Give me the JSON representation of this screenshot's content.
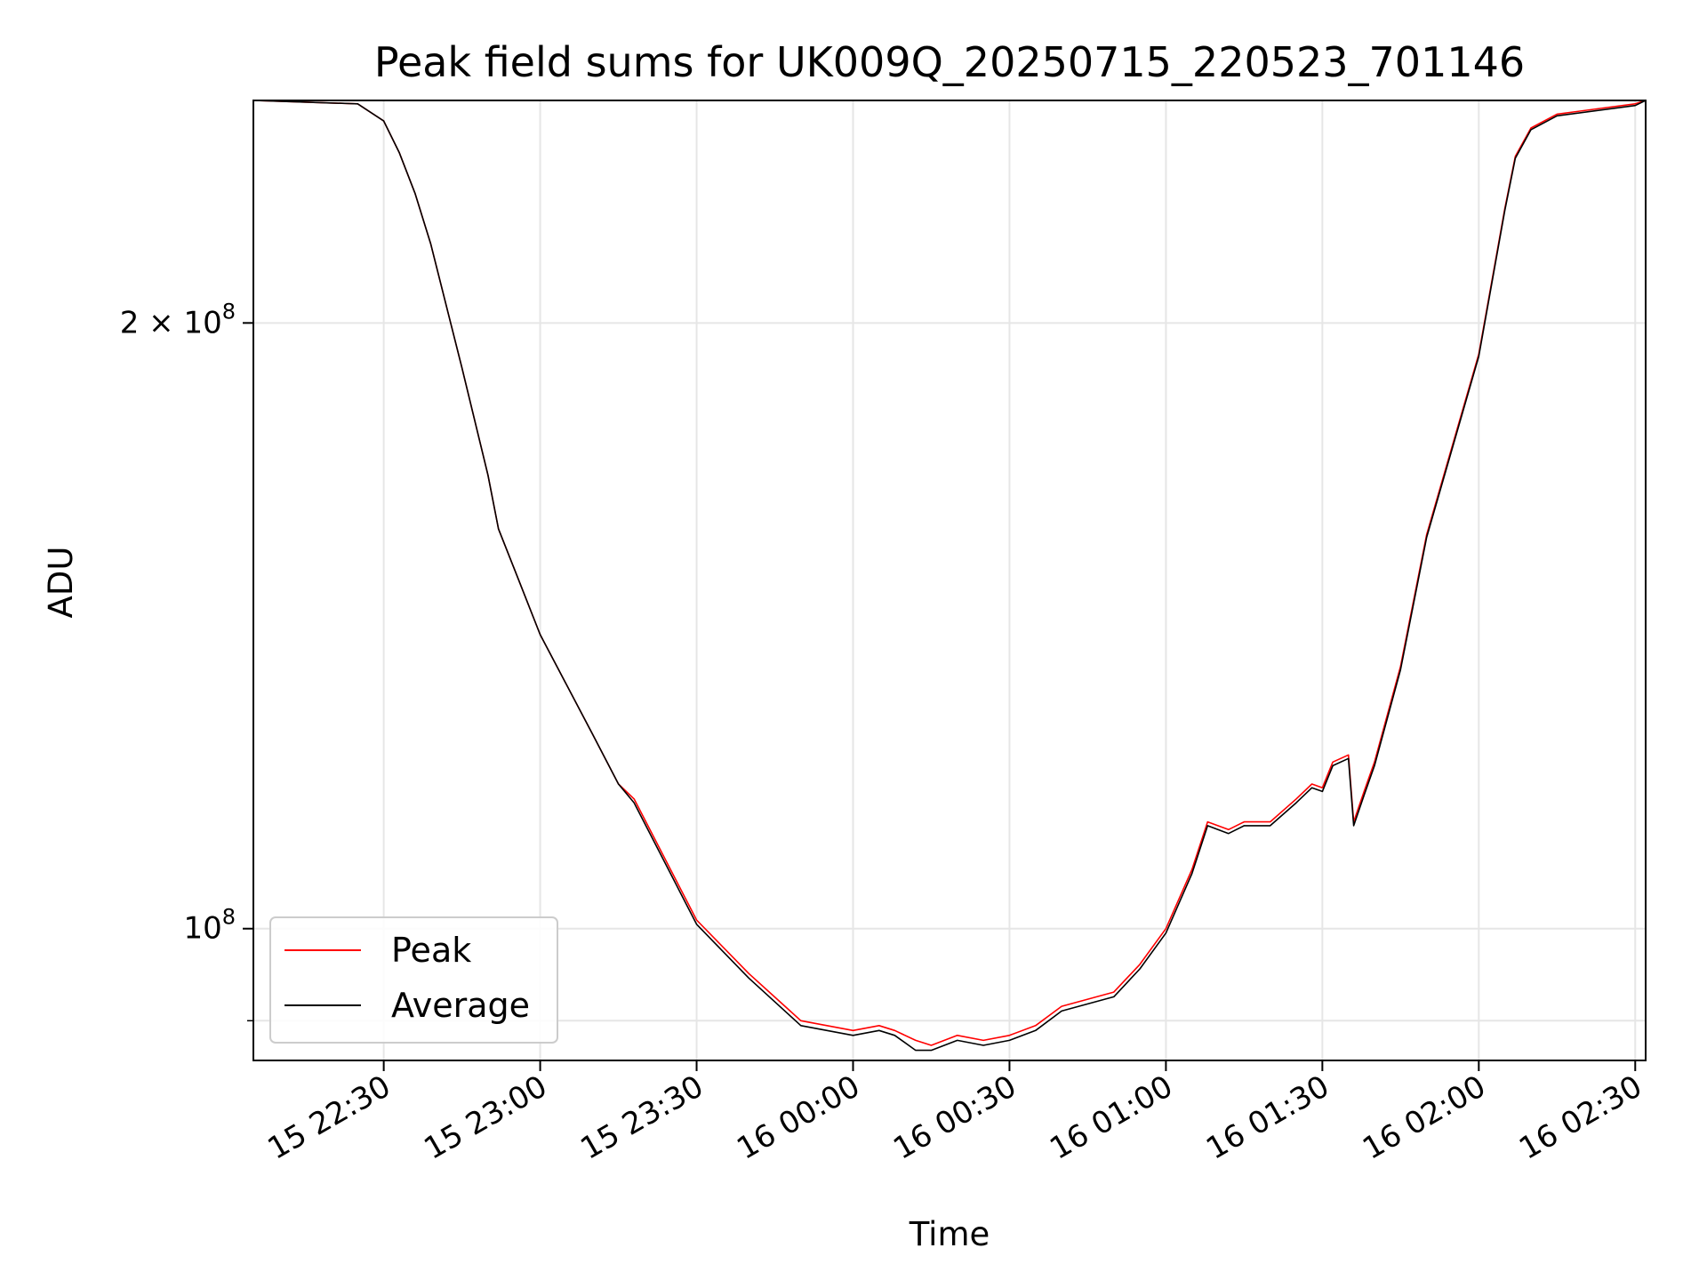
{
  "chart_data": {
    "type": "line",
    "title": "Peak field sums for UK009Q_20250715_220523_701146",
    "xlabel": "Time",
    "ylabel": "ADU",
    "xlim": [
      "2025-07-15 22:05",
      "2025-07-16 02:32"
    ],
    "ylim": [
      86000000,
      258000000
    ],
    "yscale": "log",
    "grid": true,
    "legend_position": "lower-left",
    "x_ticks": [
      {
        "value": "2025-07-15 22:30",
        "label": "15 22:30"
      },
      {
        "value": "2025-07-15 23:00",
        "label": "15 23:00"
      },
      {
        "value": "2025-07-15 23:30",
        "label": "15 23:30"
      },
      {
        "value": "2025-07-16 00:00",
        "label": "16 00:00"
      },
      {
        "value": "2025-07-16 00:30",
        "label": "16 00:30"
      },
      {
        "value": "2025-07-16 01:00",
        "label": "16 01:00"
      },
      {
        "value": "2025-07-16 01:30",
        "label": "16 01:30"
      },
      {
        "value": "2025-07-16 02:00",
        "label": "16 02:00"
      },
      {
        "value": "2025-07-16 02:30",
        "label": "16 02:30"
      }
    ],
    "y_ticks": [
      {
        "value": 200000000,
        "base": "2 × 10",
        "exp": "8"
      },
      {
        "value": 100000000,
        "base": "10",
        "exp": "8"
      }
    ],
    "y_minor_ticks": [
      90000000
    ],
    "x": [
      "2025-07-15 22:05",
      "2025-07-15 22:25",
      "2025-07-15 22:30",
      "2025-07-15 22:33",
      "2025-07-15 22:36",
      "2025-07-15 22:39",
      "2025-07-15 22:45",
      "2025-07-15 22:50",
      "2025-07-15 22:52",
      "2025-07-15 22:55",
      "2025-07-15 23:00",
      "2025-07-15 23:10",
      "2025-07-15 23:15",
      "2025-07-15 23:18",
      "2025-07-15 23:25",
      "2025-07-15 23:30",
      "2025-07-15 23:40",
      "2025-07-15 23:50",
      "2025-07-16 00:00",
      "2025-07-16 00:05",
      "2025-07-16 00:08",
      "2025-07-16 00:12",
      "2025-07-16 00:15",
      "2025-07-16 00:20",
      "2025-07-16 00:25",
      "2025-07-16 00:30",
      "2025-07-16 00:35",
      "2025-07-16 00:40",
      "2025-07-16 00:50",
      "2025-07-16 00:55",
      "2025-07-16 01:00",
      "2025-07-16 01:05",
      "2025-07-16 01:08",
      "2025-07-16 01:12",
      "2025-07-16 01:15",
      "2025-07-16 01:20",
      "2025-07-16 01:25",
      "2025-07-16 01:28",
      "2025-07-16 01:30",
      "2025-07-16 01:32",
      "2025-07-16 01:35",
      "2025-07-16 01:36",
      "2025-07-16 01:38",
      "2025-07-16 01:40",
      "2025-07-16 01:45",
      "2025-07-16 01:50",
      "2025-07-16 02:00",
      "2025-07-16 02:05",
      "2025-07-16 02:07",
      "2025-07-16 02:10",
      "2025-07-16 02:15",
      "2025-07-16 02:30",
      "2025-07-16 02:32"
    ],
    "series": [
      {
        "name": "Peak",
        "color": "#ff0000",
        "values": [
          258000000,
          257000000,
          252000000,
          243000000,
          232000000,
          219000000,
          190000000,
          168000000,
          158000000,
          151000000,
          140000000,
          125000000,
          118000000,
          116000000,
          107000000,
          101000000,
          95000000,
          90000000,
          89000000,
          89500000,
          89000000,
          88000000,
          87500000,
          88500000,
          88000000,
          88500000,
          89500000,
          91500000,
          93000000,
          96000000,
          100000000,
          107000000,
          113000000,
          112000000,
          113000000,
          113000000,
          116000000,
          118000000,
          117500000,
          121000000,
          122000000,
          113000000,
          117000000,
          121000000,
          135000000,
          157000000,
          193000000,
          228000000,
          242000000,
          250000000,
          254000000,
          257000000,
          258000000
        ]
      },
      {
        "name": "Average",
        "color": "#000000",
        "values": [
          258000000,
          257000000,
          252000000,
          243000000,
          232000000,
          219000000,
          190000000,
          168000000,
          158000000,
          151000000,
          140000000,
          125000000,
          118000000,
          115500000,
          106500000,
          100500000,
          94500000,
          89500000,
          88500000,
          89000000,
          88500000,
          87000000,
          87000000,
          88000000,
          87500000,
          88000000,
          89000000,
          91000000,
          92500000,
          95500000,
          99500000,
          106500000,
          112500000,
          111500000,
          112500000,
          112500000,
          115500000,
          117500000,
          117000000,
          120500000,
          121500000,
          112500000,
          116500000,
          120500000,
          134500000,
          156500000,
          192500000,
          227500000,
          241500000,
          249500000,
          253500000,
          256500000,
          258000000
        ]
      }
    ]
  }
}
